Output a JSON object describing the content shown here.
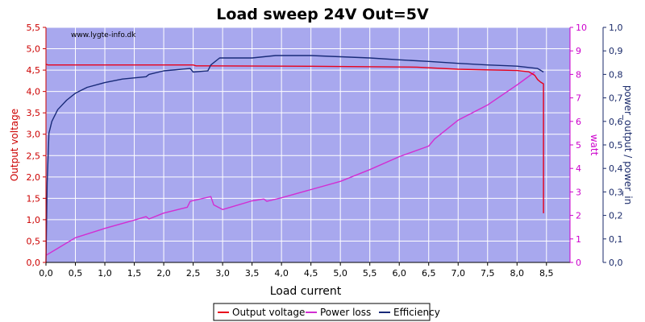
{
  "chart_data": {
    "type": "line",
    "title": "Load sweep 24V Out=5V",
    "watermark": "www.lygte-info.dk",
    "xlabel": "Load current",
    "ylabel_left": "Output voltage",
    "ylabel_right1": "watt",
    "ylabel_right2": "power_output / power_in",
    "xlim": [
      0,
      8.9
    ],
    "ylim_left": [
      0,
      5.5
    ],
    "ylim_right1": [
      0,
      10
    ],
    "ylim_right2": [
      0,
      1.0
    ],
    "x_ticks": [
      "0,0",
      "0,5",
      "1,0",
      "1,5",
      "2,0",
      "2,5",
      "3,0",
      "3,5",
      "4,0",
      "4,5",
      "5,0",
      "5,5",
      "6,0",
      "6,5",
      "7,0",
      "7,5",
      "8,0",
      "8,5"
    ],
    "y_left_ticks": [
      "0,0",
      "0,5",
      "1,0",
      "1,5",
      "2,0",
      "2,5",
      "3,0",
      "3,5",
      "4,0",
      "4,5",
      "5,0",
      "5,5"
    ],
    "y_right1_ticks": [
      "0",
      "1",
      "2",
      "3",
      "4",
      "5",
      "6",
      "7",
      "8",
      "9",
      "10"
    ],
    "y_right2_ticks": [
      "0,0",
      "0,1",
      "0,2",
      "0,3",
      "0,4",
      "0,5",
      "0,6",
      "0,7",
      "0,8",
      "0,9",
      "1,0"
    ],
    "grid": true,
    "legend_position": "bottom-center",
    "colors": {
      "plot_bg": "#a8a8ee",
      "grid": "#ffffff",
      "voltage": "#e8001a",
      "power_loss": "#d22ed2",
      "efficiency": "#182a78",
      "left_axis": "#cc0000",
      "right1_axis": "#cc00cc",
      "right2_axis": "#1a2a6a"
    },
    "series": [
      {
        "name": "Output voltage",
        "axis": "left",
        "x": [
          0.0,
          0.02,
          0.03,
          2.5,
          2.55,
          4.5,
          6.3,
          7.0,
          8.0,
          8.2,
          8.3,
          8.35,
          8.4,
          8.45,
          8.45
        ],
        "y": [
          4.63,
          4.63,
          4.62,
          4.62,
          4.6,
          4.59,
          4.57,
          4.52,
          4.49,
          4.46,
          4.38,
          4.28,
          4.22,
          4.18,
          1.15
        ]
      },
      {
        "name": "Power loss",
        "axis": "right1",
        "x": [
          0.0,
          0.2,
          0.5,
          1.0,
          1.5,
          1.7,
          1.75,
          2.0,
          2.4,
          2.45,
          2.8,
          2.85,
          3.0,
          3.5,
          3.7,
          3.75,
          4.0,
          4.5,
          5.0,
          5.5,
          6.0,
          6.5,
          6.6,
          7.0,
          7.5,
          8.0,
          8.3
        ],
        "y": [
          0.3,
          0.6,
          1.05,
          1.45,
          1.8,
          1.95,
          1.85,
          2.1,
          2.35,
          2.6,
          2.8,
          2.45,
          2.25,
          2.62,
          2.7,
          2.6,
          2.75,
          3.1,
          3.45,
          3.95,
          4.5,
          4.95,
          5.25,
          6.05,
          6.7,
          7.55,
          8.1
        ]
      },
      {
        "name": "Efficiency",
        "axis": "right2",
        "x": [
          0.0,
          0.02,
          0.05,
          0.1,
          0.2,
          0.35,
          0.5,
          0.7,
          1.0,
          1.3,
          1.7,
          1.75,
          2.0,
          2.45,
          2.5,
          2.75,
          2.8,
          2.95,
          3.5,
          3.9,
          4.5,
          5.0,
          5.5,
          6.0,
          6.5,
          7.0,
          7.5,
          8.0,
          8.35,
          8.45
        ],
        "y": [
          0.0,
          0.34,
          0.55,
          0.6,
          0.65,
          0.69,
          0.72,
          0.745,
          0.765,
          0.78,
          0.79,
          0.8,
          0.815,
          0.825,
          0.81,
          0.815,
          0.84,
          0.87,
          0.87,
          0.88,
          0.88,
          0.875,
          0.87,
          0.862,
          0.855,
          0.847,
          0.84,
          0.835,
          0.825,
          0.81
        ]
      }
    ]
  }
}
